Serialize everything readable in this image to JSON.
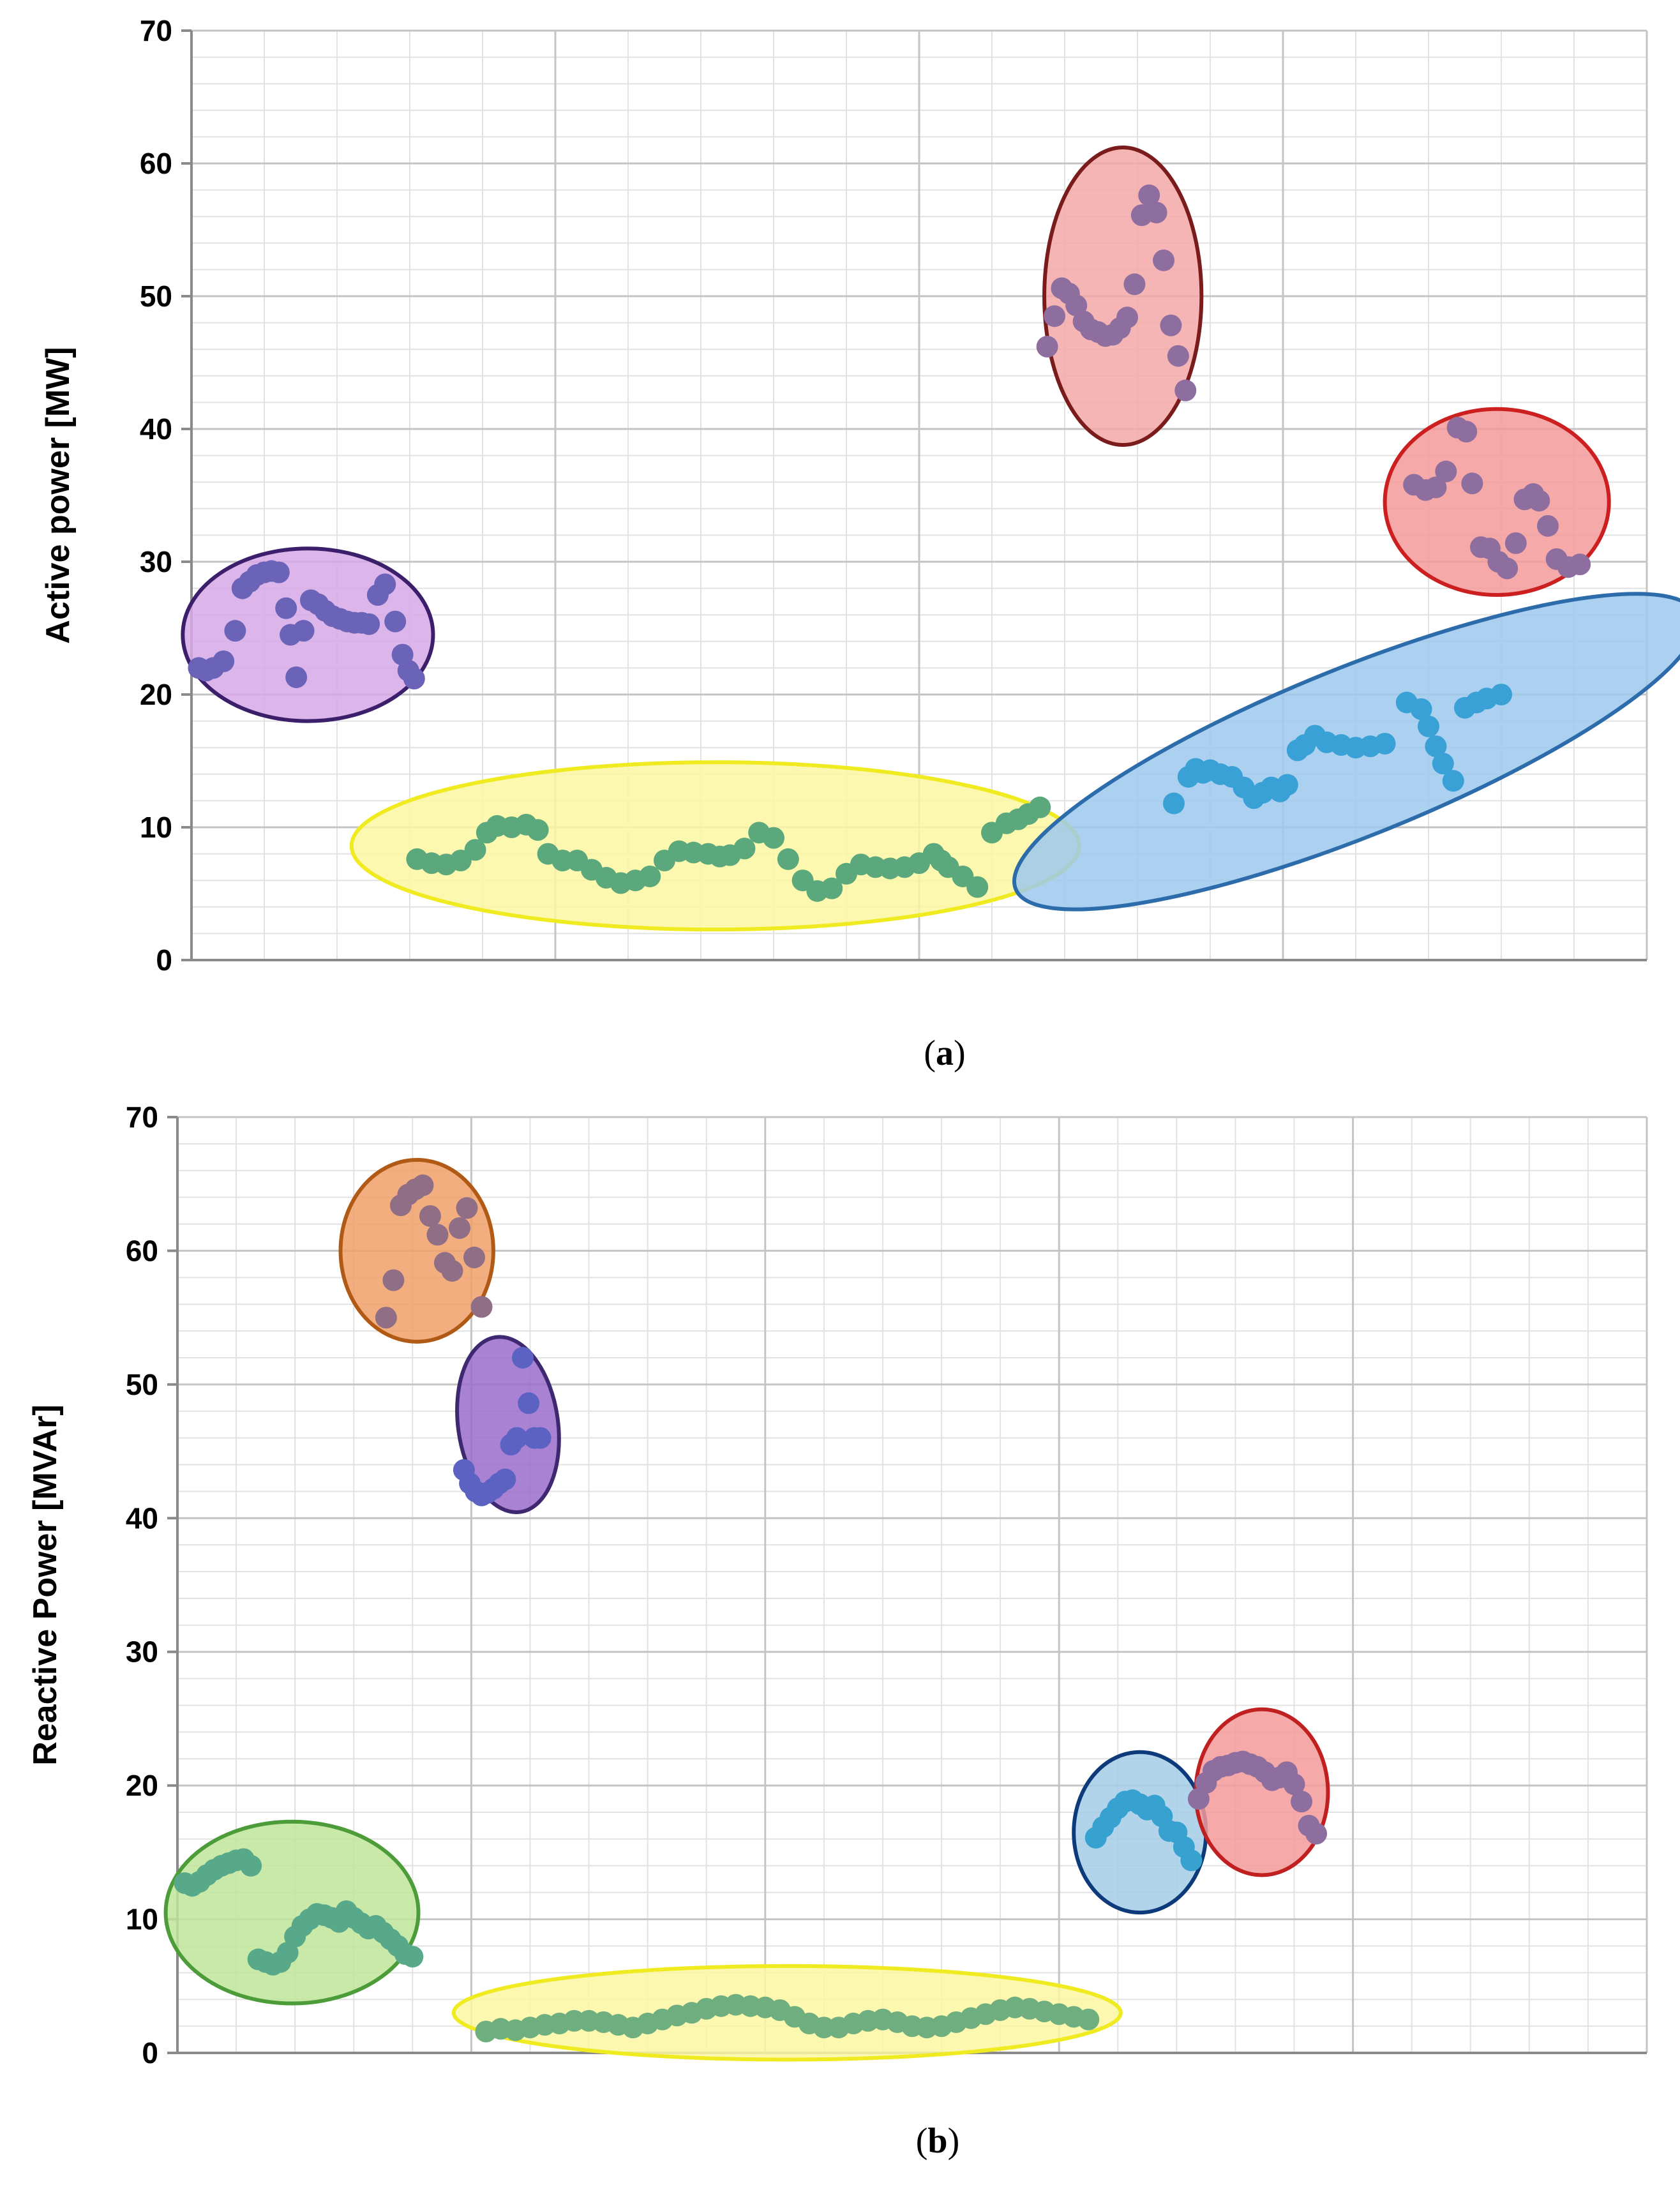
{
  "chart_data": [
    {
      "type": "scatter",
      "caption_prefix": "(",
      "caption_letter": "a",
      "caption_suffix": ")",
      "title": "",
      "xlabel": "",
      "ylabel": "Active power [MW]",
      "ylim": [
        0,
        70
      ],
      "yticks": [
        0,
        10,
        20,
        30,
        40,
        50,
        60,
        70
      ],
      "xlim": [
        0,
        100
      ],
      "x_major": [
        0,
        25,
        50,
        75,
        100
      ],
      "grid": true,
      "series": [
        {
          "name": "cluster-purple",
          "point_color": "#6a63b8",
          "fill": "#d6a8e6",
          "edge": "#3c1f6b",
          "ellipse": {
            "cx": 8,
            "cy": 24.5,
            "rx": 8.6,
            "ry": 6.5,
            "angle": 0
          },
          "x": [
            0.5,
            1,
            1.5,
            2.2,
            3,
            3.5,
            4,
            4.5,
            5,
            5.5,
            6,
            6.5,
            6.8,
            7.2,
            7.7,
            8.2,
            8.7,
            9.2,
            9.7,
            10.2,
            10.7,
            11.2,
            11.7,
            12.2,
            12.8,
            13.3,
            14,
            14.5,
            14.9,
            15.3
          ],
          "y": [
            22,
            21.8,
            22,
            22.5,
            24.8,
            28,
            28.5,
            29,
            29.2,
            29.3,
            29.2,
            26.5,
            24.5,
            21.3,
            24.8,
            27.1,
            26.8,
            26.3,
            25.9,
            25.7,
            25.5,
            25.4,
            25.4,
            25.3,
            27.5,
            28.3,
            25.5,
            23,
            21.8,
            21.2
          ]
        },
        {
          "name": "cluster-green",
          "point_color": "#5aa87c",
          "fill": "#fbf7a2",
          "edge": "#f0ea20",
          "ellipse": {
            "cx": 36,
            "cy": 8.6,
            "rx": 25,
            "ry": 6.3,
            "angle": 0
          },
          "x": [
            15.5,
            16.5,
            17.5,
            18.5,
            19.5,
            20.3,
            21,
            22,
            23,
            23.8,
            24.5,
            25.5,
            26.5,
            27.5,
            28.5,
            29.5,
            30.5,
            31.5,
            32.5,
            33.5,
            34.5,
            35.5,
            36.3,
            37,
            38,
            39,
            40,
            41,
            42,
            43,
            44,
            45,
            46,
            47,
            48,
            49,
            50,
            51,
            51.5,
            52,
            53,
            54,
            55,
            56,
            56.8,
            57.5,
            58.3
          ],
          "y": [
            7.6,
            7.3,
            7.2,
            7.5,
            8.3,
            9.6,
            10.1,
            10,
            10.2,
            9.8,
            8,
            7.5,
            7.5,
            6.8,
            6.2,
            5.8,
            6,
            6.3,
            7.5,
            8.2,
            8.1,
            8,
            7.8,
            7.9,
            8.4,
            9.6,
            9.2,
            7.6,
            6,
            5.2,
            5.4,
            6.5,
            7.2,
            7,
            6.9,
            7,
            7.3,
            8,
            7.5,
            7,
            6.3,
            5.5,
            9.6,
            10.3,
            10.6,
            11,
            11.5
          ]
        },
        {
          "name": "cluster-red-upper",
          "point_color": "#8e6e9e",
          "fill": "#f4a8a8",
          "edge": "#7a1c1c",
          "ellipse": {
            "cx": 64,
            "cy": 50,
            "rx": 5.4,
            "ry": 11.2,
            "angle": 0
          },
          "x": [
            58.8,
            59.3,
            59.8,
            60.3,
            60.8,
            61.3,
            61.8,
            62.3,
            62.8,
            63.3,
            63.8,
            64.3,
            64.8,
            65.3,
            65.8,
            66.3,
            66.8,
            67.3,
            67.8,
            68.3
          ],
          "y": [
            46.2,
            48.5,
            50.6,
            50.2,
            49.3,
            48.1,
            47.5,
            47.3,
            47,
            47.1,
            47.6,
            48.4,
            50.9,
            56.1,
            57.6,
            56.3,
            52.7,
            47.8,
            45.5,
            42.9
          ]
        },
        {
          "name": "cluster-blue",
          "point_color": "#3aa1d6",
          "fill": "#9ec8ec",
          "edge": "#2d6cab",
          "ellipse": {
            "cx": 80,
            "cy": 15.7,
            "rx": 25.2,
            "ry": 6.3,
            "angle": 22
          },
          "x": [
            67.5,
            68.5,
            69,
            69.5,
            70,
            70.7,
            71.5,
            72.3,
            73,
            73.6,
            74.2,
            74.8,
            75.3,
            76,
            76.5,
            77.2,
            78,
            79,
            80,
            81,
            82,
            83.5,
            84.5,
            85,
            85.5,
            86,
            86.7,
            87.5,
            88.3,
            89,
            90
          ],
          "y": [
            11.8,
            13.8,
            14.4,
            14.1,
            14.3,
            14,
            13.8,
            13,
            12.2,
            12.6,
            13,
            12.7,
            13.2,
            15.8,
            16.2,
            16.9,
            16.4,
            16.2,
            16,
            16.1,
            16.3,
            19.4,
            18.9,
            17.6,
            16.1,
            14.8,
            13.5,
            19,
            19.4,
            19.7,
            20
          ]
        },
        {
          "name": "cluster-red-right",
          "point_color": "#8e6e9e",
          "fill": "#f49a9a",
          "edge": "#cc1f1f",
          "ellipse": {
            "cx": 89.7,
            "cy": 34.5,
            "rx": 7.7,
            "ry": 7,
            "angle": 0
          },
          "x": [
            84,
            84.8,
            85.5,
            86.2,
            87,
            87.6,
            88,
            88.6,
            89.2,
            89.8,
            90.4,
            91,
            91.6,
            92.2,
            92.6,
            93.2,
            93.8,
            94.6,
            95.4
          ],
          "y": [
            35.8,
            35.4,
            35.6,
            36.8,
            40.1,
            39.8,
            35.9,
            31.1,
            31,
            30,
            29.5,
            31.4,
            34.7,
            35.1,
            34.6,
            32.7,
            30.2,
            29.6,
            29.8
          ]
        }
      ]
    },
    {
      "type": "scatter",
      "caption_prefix": "(",
      "caption_letter": "b",
      "caption_suffix": ")",
      "title": "",
      "xlabel": "",
      "ylabel": "Reactive Power [MVAr]",
      "ylim": [
        0,
        70
      ],
      "yticks": [
        0,
        10,
        20,
        30,
        40,
        50,
        60,
        70
      ],
      "xlim": [
        0,
        100
      ],
      "x_major": [
        0,
        20,
        40,
        60,
        80,
        100
      ],
      "grid": true,
      "series": [
        {
          "name": "cluster-green",
          "point_color": "#58a98a",
          "fill": "#bfe59a",
          "edge": "#4c9d3a",
          "ellipse": {
            "cx": 7.8,
            "cy": 10.5,
            "rx": 8.6,
            "ry": 6.8,
            "angle": 0
          },
          "x": [
            0.5,
            1,
            1.5,
            2,
            2.5,
            3,
            3.5,
            4,
            4.5,
            5,
            5.5,
            6,
            6.5,
            7,
            7.5,
            8,
            8.5,
            9,
            9.5,
            10,
            10.5,
            11,
            11.5,
            12,
            12.5,
            13,
            13.5,
            14,
            14.5,
            15,
            15.5,
            16
          ],
          "y": [
            12.7,
            12.5,
            12.8,
            13.3,
            13.7,
            14,
            14.2,
            14.4,
            14.5,
            14,
            7,
            6.8,
            6.6,
            6.8,
            7.5,
            8.7,
            9.5,
            10,
            10.4,
            10.3,
            10.1,
            9.8,
            10.6,
            10.1,
            9.7,
            9.3,
            9.5,
            9,
            8.5,
            8,
            7.4,
            7.2
          ]
        },
        {
          "name": "cluster-orange",
          "point_color": "#8f6e86",
          "fill": "#f0a068",
          "edge": "#b05a15",
          "ellipse": {
            "cx": 16.3,
            "cy": 60,
            "rx": 5.2,
            "ry": 6.8,
            "angle": 0
          },
          "x": [
            14.2,
            14.7,
            15.2,
            15.7,
            16.2,
            16.7,
            17.2,
            17.7,
            18.2,
            18.7,
            19.2,
            19.7,
            20.2,
            20.7
          ],
          "y": [
            55,
            57.8,
            63.4,
            64.2,
            64.6,
            64.9,
            62.6,
            61.2,
            59.1,
            58.5,
            61.7,
            63.2,
            59.5,
            55.8
          ]
        },
        {
          "name": "cluster-purple",
          "point_color": "#5b62c2",
          "fill": "#9a6ccc",
          "edge": "#3e2870",
          "ellipse": {
            "cx": 22.5,
            "cy": 47,
            "rx": 3.4,
            "ry": 6.6,
            "angle": 8
          },
          "x": [
            19.5,
            19.9,
            20.3,
            20.7,
            21.1,
            21.5,
            21.9,
            22.3,
            22.7,
            23.1,
            23.5,
            23.9,
            24.3,
            24.7
          ],
          "y": [
            43.6,
            42.6,
            42,
            41.7,
            41.9,
            42.2,
            42.6,
            42.9,
            45.5,
            46,
            52,
            48.6,
            46,
            46
          ]
        },
        {
          "name": "cluster-yellow",
          "point_color": "#6fae7e",
          "fill": "#fbf7a2",
          "edge": "#f0ea20",
          "ellipse": {
            "cx": 41.5,
            "cy": 3,
            "rx": 22.7,
            "ry": 3.5,
            "angle": 0
          },
          "x": [
            21,
            22,
            23,
            24,
            25,
            26,
            27,
            28,
            29,
            30,
            31,
            32,
            33,
            34,
            35,
            36,
            37,
            38,
            39,
            40,
            41,
            42,
            43,
            44,
            45,
            46,
            47,
            48,
            49,
            50,
            51,
            52,
            53,
            54,
            55,
            56,
            57,
            58,
            59,
            60,
            61,
            62
          ],
          "y": [
            1.6,
            1.8,
            1.7,
            1.9,
            2.1,
            2.2,
            2.4,
            2.4,
            2.3,
            2.1,
            1.9,
            2.2,
            2.5,
            2.8,
            3,
            3.3,
            3.5,
            3.6,
            3.5,
            3.4,
            3.2,
            2.7,
            2.2,
            1.9,
            1.9,
            2.2,
            2.4,
            2.5,
            2.3,
            2,
            1.9,
            2,
            2.3,
            2.6,
            2.9,
            3.2,
            3.4,
            3.3,
            3.1,
            2.9,
            2.7,
            2.5
          ]
        },
        {
          "name": "cluster-blue",
          "point_color": "#37a2d0",
          "fill": "#a4cde8",
          "edge": "#0d3a7a",
          "ellipse": {
            "cx": 65.5,
            "cy": 16.5,
            "rx": 4.5,
            "ry": 6,
            "angle": 0
          },
          "x": [
            62.5,
            63,
            63.5,
            64,
            64.5,
            65,
            65.5,
            66,
            66.5,
            67,
            67.5,
            68,
            68.5,
            69
          ],
          "y": [
            16.1,
            16.9,
            17.6,
            18.3,
            18.8,
            18.9,
            18.6,
            18.2,
            18.5,
            17.7,
            16.6,
            16.5,
            15.4,
            14.4
          ]
        },
        {
          "name": "cluster-red",
          "point_color": "#8e6e9e",
          "fill": "#f49a9a",
          "edge": "#c02020",
          "ellipse": {
            "cx": 73.8,
            "cy": 19.5,
            "rx": 4.5,
            "ry": 6.2,
            "angle": 0
          },
          "x": [
            69.5,
            70,
            70.5,
            71,
            71.5,
            72,
            72.5,
            73,
            73.5,
            74,
            74.5,
            75,
            75.5,
            76,
            76.5,
            77,
            77.5
          ],
          "y": [
            19,
            20.2,
            21.1,
            21.4,
            21.5,
            21.7,
            21.8,
            21.6,
            21.4,
            21,
            20.4,
            20.6,
            21,
            20.1,
            18.8,
            17,
            16.4
          ]
        }
      ]
    }
  ]
}
